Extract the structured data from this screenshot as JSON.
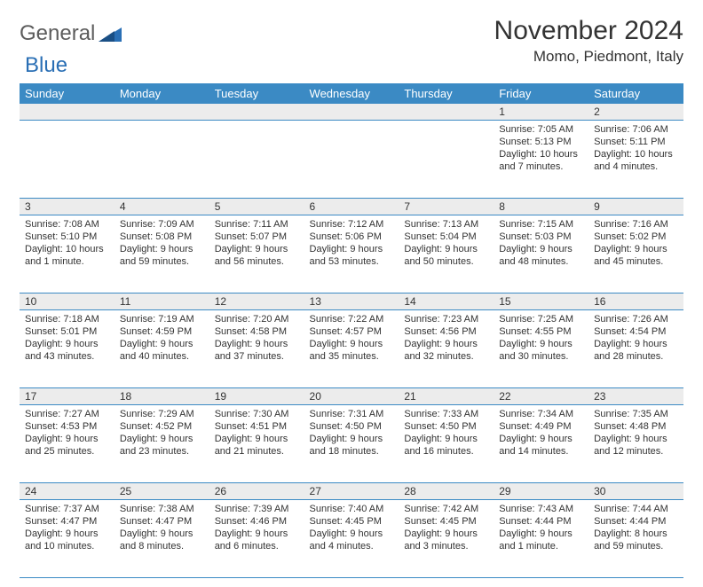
{
  "logo": {
    "part1": "General",
    "part2": "Blue"
  },
  "title": "November 2024",
  "location": "Momo, Piedmont, Italy",
  "colors": {
    "header_bg": "#3b8ac4",
    "header_text": "#ffffff",
    "daynum_bg": "#ececec",
    "border": "#3b8ac4",
    "body_text": "#333333",
    "logo_gray": "#5c5c5c",
    "logo_blue": "#2a6fb5"
  },
  "weekdays": [
    "Sunday",
    "Monday",
    "Tuesday",
    "Wednesday",
    "Thursday",
    "Friday",
    "Saturday"
  ],
  "weeks": [
    [
      null,
      null,
      null,
      null,
      null,
      {
        "d": "1",
        "sr": "7:05 AM",
        "ss": "5:13 PM",
        "dl": "10 hours and 7 minutes."
      },
      {
        "d": "2",
        "sr": "7:06 AM",
        "ss": "5:11 PM",
        "dl": "10 hours and 4 minutes."
      }
    ],
    [
      {
        "d": "3",
        "sr": "7:08 AM",
        "ss": "5:10 PM",
        "dl": "10 hours and 1 minute."
      },
      {
        "d": "4",
        "sr": "7:09 AM",
        "ss": "5:08 PM",
        "dl": "9 hours and 59 minutes."
      },
      {
        "d": "5",
        "sr": "7:11 AM",
        "ss": "5:07 PM",
        "dl": "9 hours and 56 minutes."
      },
      {
        "d": "6",
        "sr": "7:12 AM",
        "ss": "5:06 PM",
        "dl": "9 hours and 53 minutes."
      },
      {
        "d": "7",
        "sr": "7:13 AM",
        "ss": "5:04 PM",
        "dl": "9 hours and 50 minutes."
      },
      {
        "d": "8",
        "sr": "7:15 AM",
        "ss": "5:03 PM",
        "dl": "9 hours and 48 minutes."
      },
      {
        "d": "9",
        "sr": "7:16 AM",
        "ss": "5:02 PM",
        "dl": "9 hours and 45 minutes."
      }
    ],
    [
      {
        "d": "10",
        "sr": "7:18 AM",
        "ss": "5:01 PM",
        "dl": "9 hours and 43 minutes."
      },
      {
        "d": "11",
        "sr": "7:19 AM",
        "ss": "4:59 PM",
        "dl": "9 hours and 40 minutes."
      },
      {
        "d": "12",
        "sr": "7:20 AM",
        "ss": "4:58 PM",
        "dl": "9 hours and 37 minutes."
      },
      {
        "d": "13",
        "sr": "7:22 AM",
        "ss": "4:57 PM",
        "dl": "9 hours and 35 minutes."
      },
      {
        "d": "14",
        "sr": "7:23 AM",
        "ss": "4:56 PM",
        "dl": "9 hours and 32 minutes."
      },
      {
        "d": "15",
        "sr": "7:25 AM",
        "ss": "4:55 PM",
        "dl": "9 hours and 30 minutes."
      },
      {
        "d": "16",
        "sr": "7:26 AM",
        "ss": "4:54 PM",
        "dl": "9 hours and 28 minutes."
      }
    ],
    [
      {
        "d": "17",
        "sr": "7:27 AM",
        "ss": "4:53 PM",
        "dl": "9 hours and 25 minutes."
      },
      {
        "d": "18",
        "sr": "7:29 AM",
        "ss": "4:52 PM",
        "dl": "9 hours and 23 minutes."
      },
      {
        "d": "19",
        "sr": "7:30 AM",
        "ss": "4:51 PM",
        "dl": "9 hours and 21 minutes."
      },
      {
        "d": "20",
        "sr": "7:31 AM",
        "ss": "4:50 PM",
        "dl": "9 hours and 18 minutes."
      },
      {
        "d": "21",
        "sr": "7:33 AM",
        "ss": "4:50 PM",
        "dl": "9 hours and 16 minutes."
      },
      {
        "d": "22",
        "sr": "7:34 AM",
        "ss": "4:49 PM",
        "dl": "9 hours and 14 minutes."
      },
      {
        "d": "23",
        "sr": "7:35 AM",
        "ss": "4:48 PM",
        "dl": "9 hours and 12 minutes."
      }
    ],
    [
      {
        "d": "24",
        "sr": "7:37 AM",
        "ss": "4:47 PM",
        "dl": "9 hours and 10 minutes."
      },
      {
        "d": "25",
        "sr": "7:38 AM",
        "ss": "4:47 PM",
        "dl": "9 hours and 8 minutes."
      },
      {
        "d": "26",
        "sr": "7:39 AM",
        "ss": "4:46 PM",
        "dl": "9 hours and 6 minutes."
      },
      {
        "d": "27",
        "sr": "7:40 AM",
        "ss": "4:45 PM",
        "dl": "9 hours and 4 minutes."
      },
      {
        "d": "28",
        "sr": "7:42 AM",
        "ss": "4:45 PM",
        "dl": "9 hours and 3 minutes."
      },
      {
        "d": "29",
        "sr": "7:43 AM",
        "ss": "4:44 PM",
        "dl": "9 hours and 1 minute."
      },
      {
        "d": "30",
        "sr": "7:44 AM",
        "ss": "4:44 PM",
        "dl": "8 hours and 59 minutes."
      }
    ]
  ],
  "labels": {
    "sunrise": "Sunrise:",
    "sunset": "Sunset:",
    "daylight": "Daylight:"
  }
}
